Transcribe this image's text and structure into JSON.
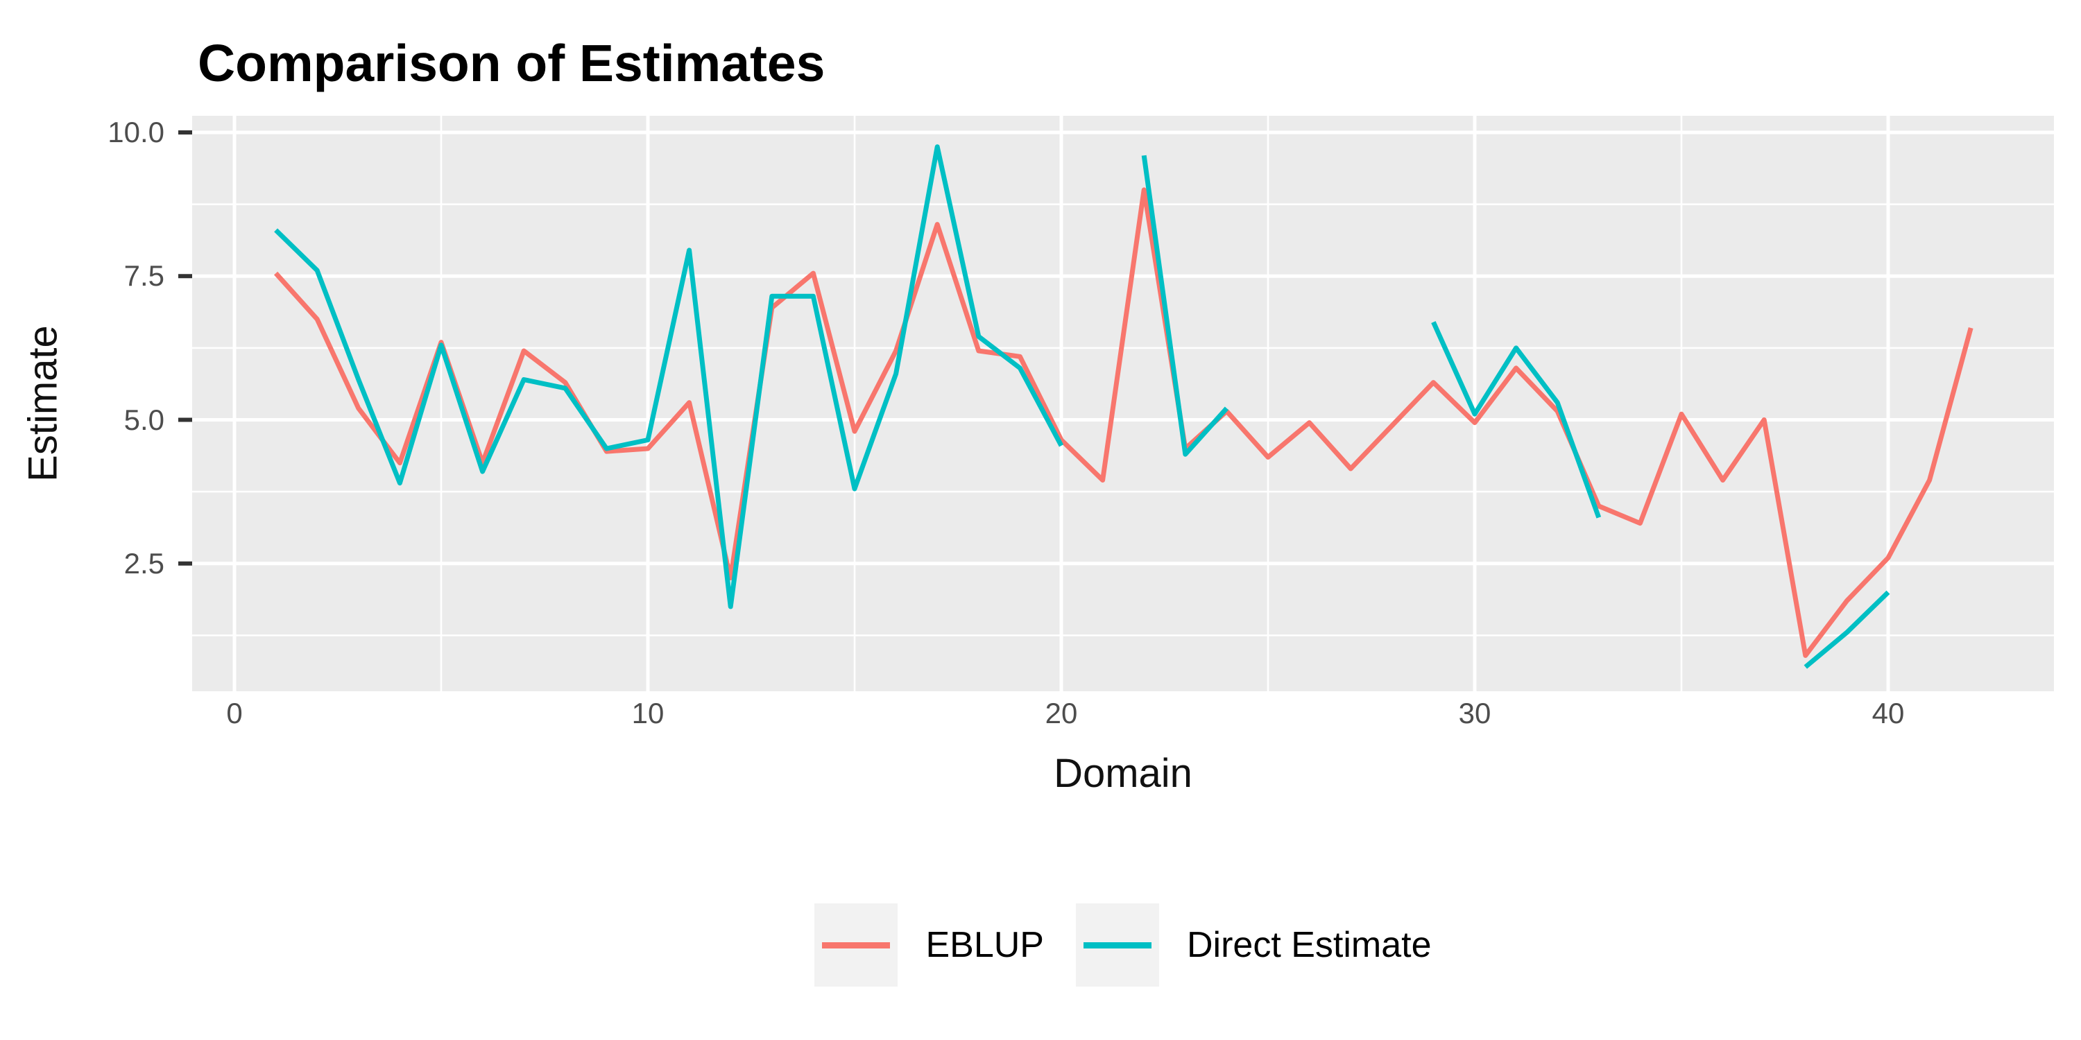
{
  "title": "Comparison of Estimates",
  "x_axis": {
    "label": "Domain",
    "tick_labels": [
      "0",
      "10",
      "20",
      "30",
      "40"
    ],
    "tick_values": [
      0,
      10,
      20,
      30,
      40
    ],
    "minor_tick_values": [
      5,
      15,
      25,
      35
    ]
  },
  "y_axis": {
    "label": "Estimate",
    "tick_labels": [
      "2.5",
      "5.0",
      "7.5",
      "10.0"
    ],
    "tick_values": [
      2.5,
      5.0,
      7.5,
      10.0
    ],
    "minor_tick_values": [
      1.25,
      3.75,
      6.25,
      8.75
    ]
  },
  "legend": {
    "items": [
      {
        "label": "EBLUP",
        "color": "#F8766D"
      },
      {
        "label": "Direct Estimate",
        "color": "#00BFC4"
      }
    ]
  },
  "colors": {
    "panel_bg": "#EBEBEB",
    "gridline": "#FFFFFF",
    "tick_mark": "#333333",
    "tick_text": "#4D4D4D",
    "title_text": "#000000",
    "axis_title_text": "#111111",
    "legend_key_bg": "#F2F2F2",
    "eblup_line": "#F8766D",
    "direct_line": "#00BFC4"
  },
  "chart_data": {
    "type": "line",
    "title": "Comparison of Estimates",
    "xlabel": "Domain",
    "ylabel": "Estimate",
    "x": [
      1,
      2,
      3,
      4,
      5,
      6,
      7,
      8,
      9,
      10,
      11,
      12,
      13,
      14,
      15,
      16,
      17,
      18,
      19,
      20,
      21,
      22,
      23,
      24,
      25,
      26,
      27,
      28,
      29,
      30,
      31,
      32,
      33,
      34,
      35,
      36,
      37,
      38,
      39,
      40,
      41,
      42
    ],
    "series": [
      {
        "name": "EBLUP",
        "color": "#F8766D",
        "values": [
          7.55,
          6.75,
          5.2,
          4.25,
          6.35,
          4.25,
          6.2,
          5.65,
          4.45,
          4.5,
          5.3,
          2.25,
          6.95,
          7.55,
          4.8,
          6.2,
          8.4,
          6.2,
          6.1,
          4.65,
          3.95,
          9.0,
          4.5,
          5.15,
          4.35,
          4.95,
          4.15,
          4.9,
          5.65,
          4.95,
          5.9,
          5.15,
          3.5,
          3.2,
          5.1,
          3.95,
          5.0,
          0.9,
          1.85,
          2.6,
          3.95,
          6.6
        ]
      },
      {
        "name": "Direct Estimate",
        "color": "#00BFC4",
        "values": [
          8.3,
          7.6,
          5.7,
          3.9,
          6.3,
          4.1,
          5.7,
          5.55,
          4.5,
          4.65,
          7.95,
          1.75,
          7.15,
          7.15,
          3.8,
          5.8,
          9.75,
          6.45,
          5.9,
          4.55,
          null,
          9.6,
          4.4,
          5.2,
          null,
          null,
          null,
          null,
          6.7,
          5.1,
          6.25,
          5.3,
          3.3,
          null,
          null,
          null,
          null,
          0.7,
          1.3,
          2.0,
          null,
          null
        ]
      }
    ],
    "x_ticks": [
      0,
      10,
      20,
      30,
      40
    ],
    "y_ticks": [
      2.5,
      5.0,
      7.5,
      10.0
    ],
    "x_range": [
      -1.0,
      44.0
    ],
    "y_range": [
      0.28,
      10.29
    ],
    "grid": true,
    "legend_position": "bottom",
    "panel_bg": "#EBEBEB"
  }
}
